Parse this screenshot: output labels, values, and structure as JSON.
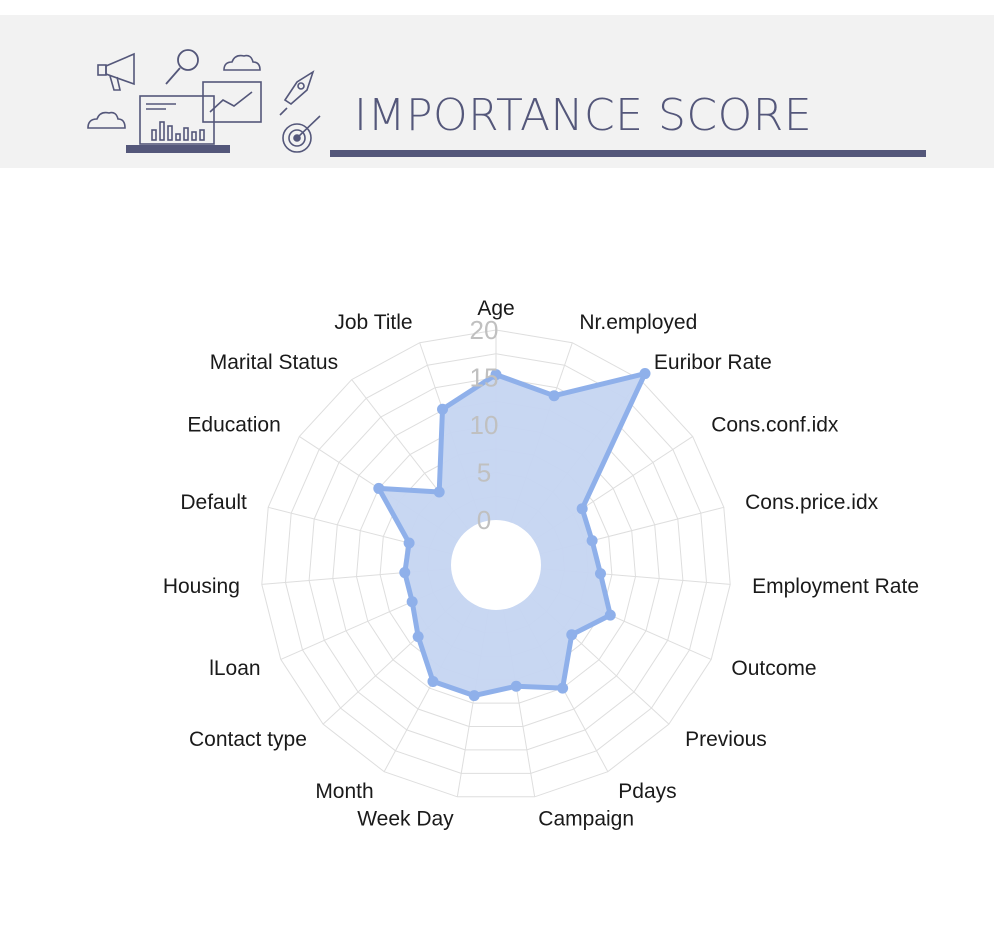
{
  "header": {
    "title": "IMPORTANCE SCORE",
    "accent_color": "#54577a",
    "illustration_icons": [
      "megaphone-icon",
      "magnifier-icon",
      "cloud-icon",
      "laptop-chart-icon",
      "rocket-icon",
      "target-icon"
    ]
  },
  "chart_data": {
    "type": "radar",
    "title": "",
    "rlim": [
      0,
      20
    ],
    "r_ticks": [
      "0",
      "5",
      "10",
      "15",
      "20"
    ],
    "grid": true,
    "fill_color": "#c5d5f1",
    "line_color": "#8fb0ea",
    "tick_color": "#c0c0c0",
    "categories": [
      "Age",
      "Nr.employed",
      "Euribor Rate",
      "Cons.conf.idx",
      "Cons.price.idx",
      "Employment Rate",
      "Outcome",
      "Previous",
      "Pdays",
      "Campaign",
      "Week Day",
      "Month",
      "Contact type",
      "lLoan",
      "Housing",
      "Default",
      "Education",
      "Marital Status",
      "Job Title"
    ],
    "series": [
      {
        "values": [
          15.3,
          14.1,
          20.8,
          6.1,
          5.7,
          6.3,
          8.4,
          6.1,
          10.0,
          8.2,
          9.2,
          9.2,
          6.4,
          4.9,
          4.9,
          4.7,
          10.0,
          5.0,
          12.6
        ]
      }
    ]
  }
}
